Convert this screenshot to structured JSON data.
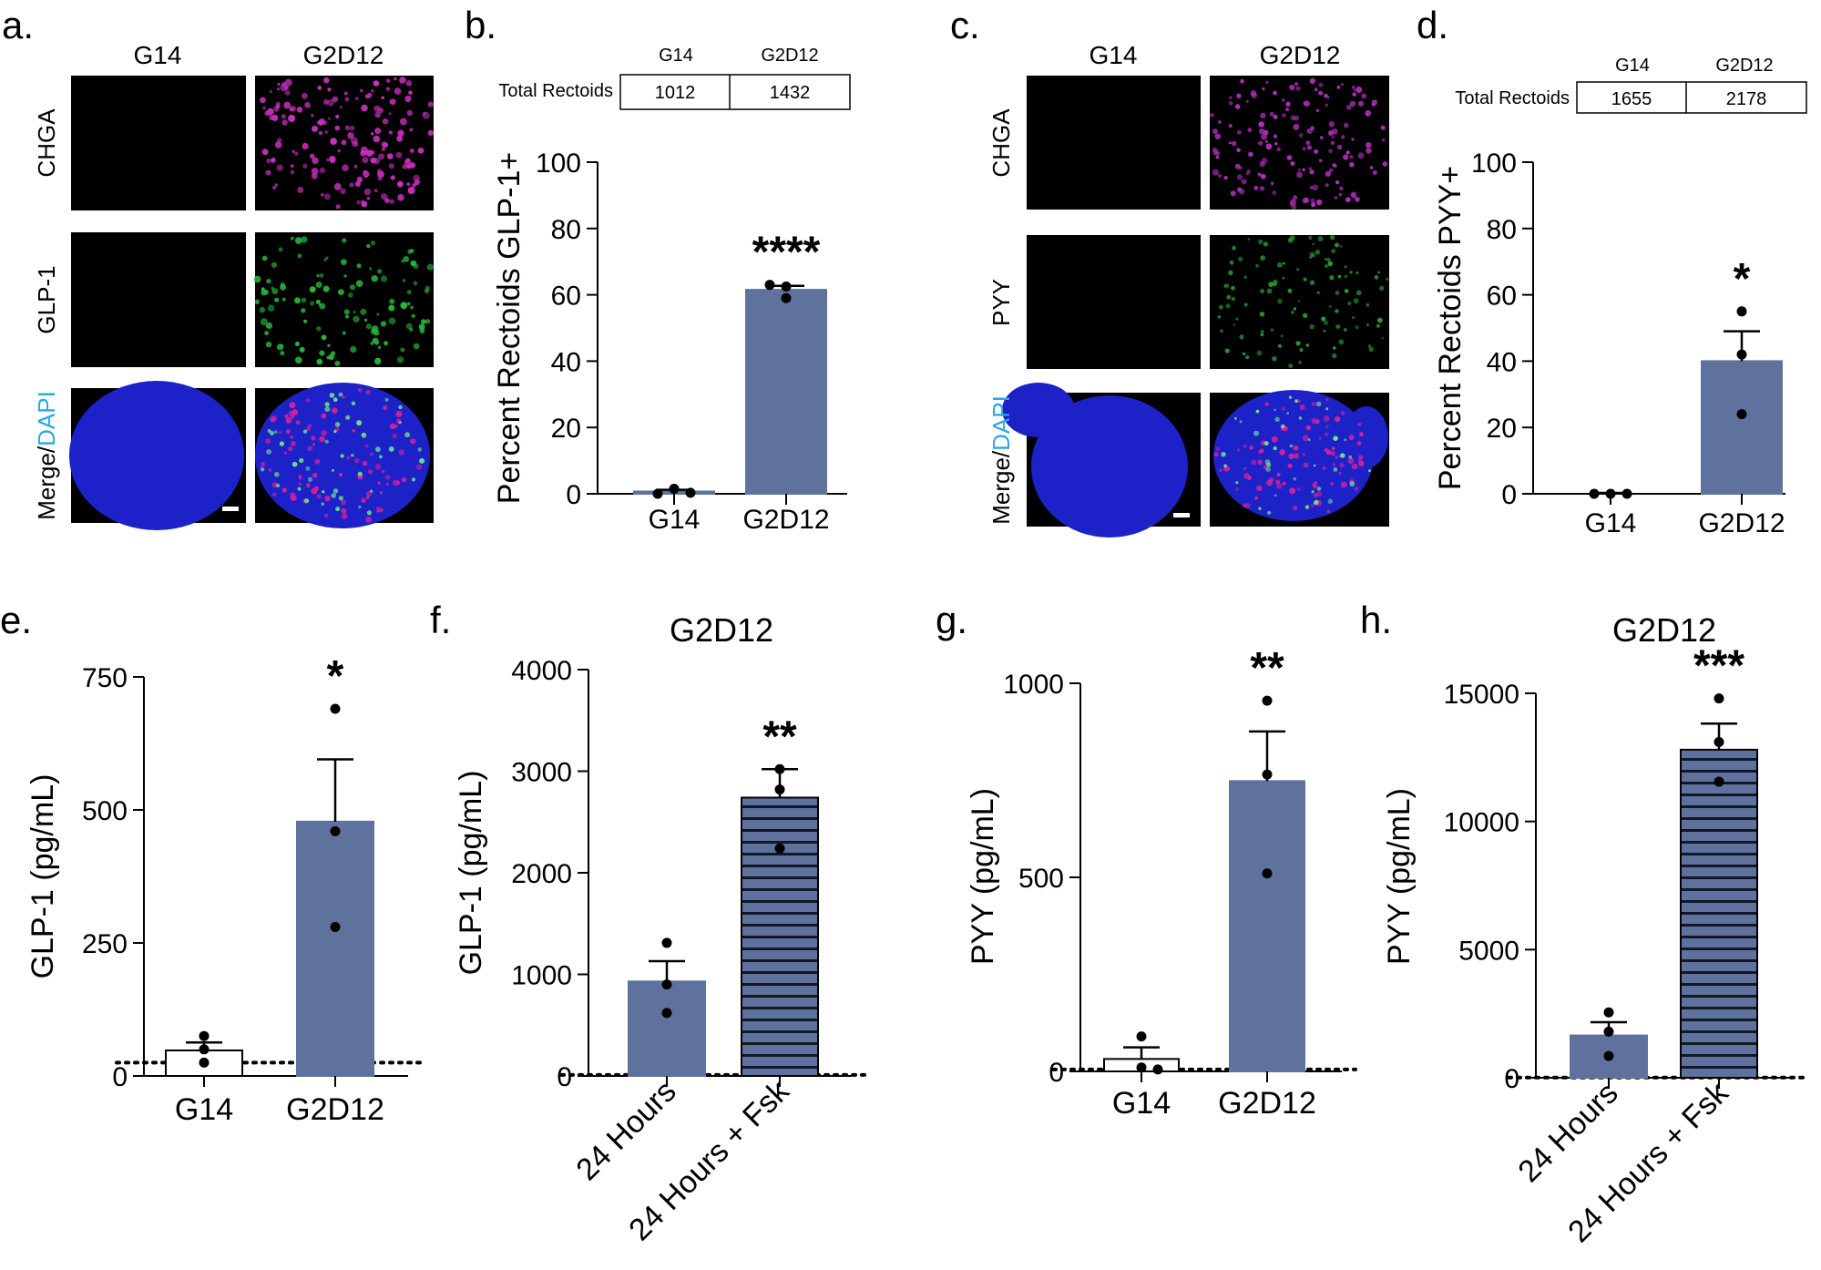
{
  "colors": {
    "bar": "#5f729e",
    "magenta": "#e0249a",
    "green": "#1aa64a",
    "blue": "#27a9e1",
    "ink": "#000000",
    "panel_bg": "#000000",
    "dapi_blue": "#1c22c8"
  },
  "panel_letters": {
    "a": "a.",
    "b": "b.",
    "c": "c.",
    "d": "d.",
    "e": "e.",
    "f": "f.",
    "g": "g.",
    "h": "h."
  },
  "micrographs": {
    "a": {
      "col_labels": [
        "G14",
        "G2D12"
      ],
      "rows": [
        {
          "label": "CHGA",
          "color": "magenta"
        },
        {
          "label": "GLP-1",
          "color": "green"
        },
        {
          "label_parts": [
            "Merge/",
            "DAPI"
          ]
        }
      ]
    },
    "c": {
      "col_labels": [
        "G14",
        "G2D12"
      ],
      "rows": [
        {
          "label": "CHGA",
          "color": "magenta"
        },
        {
          "label": "PYY",
          "color": "green"
        },
        {
          "label_parts": [
            "Merge/",
            "DAPI"
          ]
        }
      ]
    }
  },
  "tables": {
    "b": {
      "row_label": "Total Rectoids",
      "headers": [
        "G14",
        "G2D12"
      ],
      "values": [
        "1012",
        "1432"
      ]
    },
    "d": {
      "row_label": "Total Rectoids",
      "headers": [
        "G14",
        "G2D12"
      ],
      "values": [
        "1655",
        "2178"
      ]
    }
  },
  "chart_data": [
    {
      "panel": "b",
      "type": "bar",
      "title": "",
      "ylabel": "Percent Rectoids GLP-1+",
      "xlabel": "",
      "categories": [
        "G14",
        "G2D12"
      ],
      "values": [
        0.7,
        61.5
      ],
      "sem": [
        0.5,
        1.2
      ],
      "points": [
        [
          0.0,
          1.5,
          0.3
        ],
        [
          63.0,
          62.5,
          59.0
        ]
      ],
      "ylim": [
        0,
        100
      ],
      "yticks": [
        0,
        20,
        40,
        60,
        80,
        100
      ],
      "fills": [
        "solid",
        "solid"
      ],
      "significance": [
        "",
        "****"
      ]
    },
    {
      "panel": "d",
      "type": "bar",
      "title": "",
      "ylabel": "Percent Rectoids PYY+",
      "xlabel": "",
      "categories": [
        "G14",
        "G2D12"
      ],
      "values": [
        0,
        40
      ],
      "sem": [
        0,
        9
      ],
      "points": [
        [
          0,
          0,
          0
        ],
        [
          55,
          42,
          24
        ]
      ],
      "ylim": [
        0,
        100
      ],
      "yticks": [
        0,
        20,
        40,
        60,
        80,
        100
      ],
      "fills": [
        "solid",
        "solid"
      ],
      "significance": [
        "",
        "*"
      ]
    },
    {
      "panel": "e",
      "type": "bar",
      "title": "",
      "ylabel": "GLP-1 (pg/mL)",
      "xlabel": "",
      "categories": [
        "G14",
        "G2D12"
      ],
      "values": [
        48,
        478
      ],
      "sem": [
        15,
        117
      ],
      "points": [
        [
          75,
          50,
          25
        ],
        [
          690,
          460,
          280
        ]
      ],
      "ylim": [
        0,
        750
      ],
      "yticks": [
        0,
        250,
        500,
        750
      ],
      "fills": [
        "empty",
        "solid"
      ],
      "significance": [
        "",
        "*"
      ],
      "lod": 25
    },
    {
      "panel": "f",
      "type": "bar",
      "title": "G2D12",
      "ylabel": "GLP-1 (pg/mL)",
      "xlabel": "",
      "categories": [
        "24 Hours",
        "24 Hours + Fsk"
      ],
      "values": [
        930,
        2740
      ],
      "sem": [
        200,
        280
      ],
      "points": [
        [
          1310,
          900,
          620
        ],
        [
          3020,
          2820,
          2240
        ]
      ],
      "ylim": [
        0,
        4000
      ],
      "yticks": [
        0,
        1000,
        2000,
        3000,
        4000
      ],
      "fills": [
        "solid",
        "striped"
      ],
      "significance": [
        "",
        "**"
      ],
      "lod": 10
    },
    {
      "panel": "g",
      "type": "bar",
      "title": "",
      "ylabel": "PYY (pg/mL)",
      "xlabel": "",
      "categories": [
        "G14",
        "G2D12"
      ],
      "values": [
        32,
        748
      ],
      "sem": [
        30,
        128
      ],
      "points": [
        [
          90,
          10,
          5
        ],
        [
          955,
          765,
          510
        ]
      ],
      "ylim": [
        0,
        1000
      ],
      "yticks": [
        0,
        500,
        1000
      ],
      "fills": [
        "empty",
        "solid"
      ],
      "significance": [
        "",
        "**"
      ],
      "lod": 5
    },
    {
      "panel": "h",
      "type": "bar",
      "title": "G2D12",
      "ylabel": "PYY (pg/mL)",
      "xlabel": "",
      "categories": [
        "24 Hours",
        "24 Hours + Fsk"
      ],
      "values": [
        1650,
        12800
      ],
      "sem": [
        520,
        1020
      ],
      "points": [
        [
          2550,
          1800,
          850
        ],
        [
          14800,
          13100,
          11550
        ]
      ],
      "ylim": [
        0,
        15000
      ],
      "yticks": [
        0,
        5000,
        10000,
        15000
      ],
      "fills": [
        "solid",
        "striped"
      ],
      "significance": [
        "",
        "***"
      ],
      "lod": 10
    }
  ]
}
